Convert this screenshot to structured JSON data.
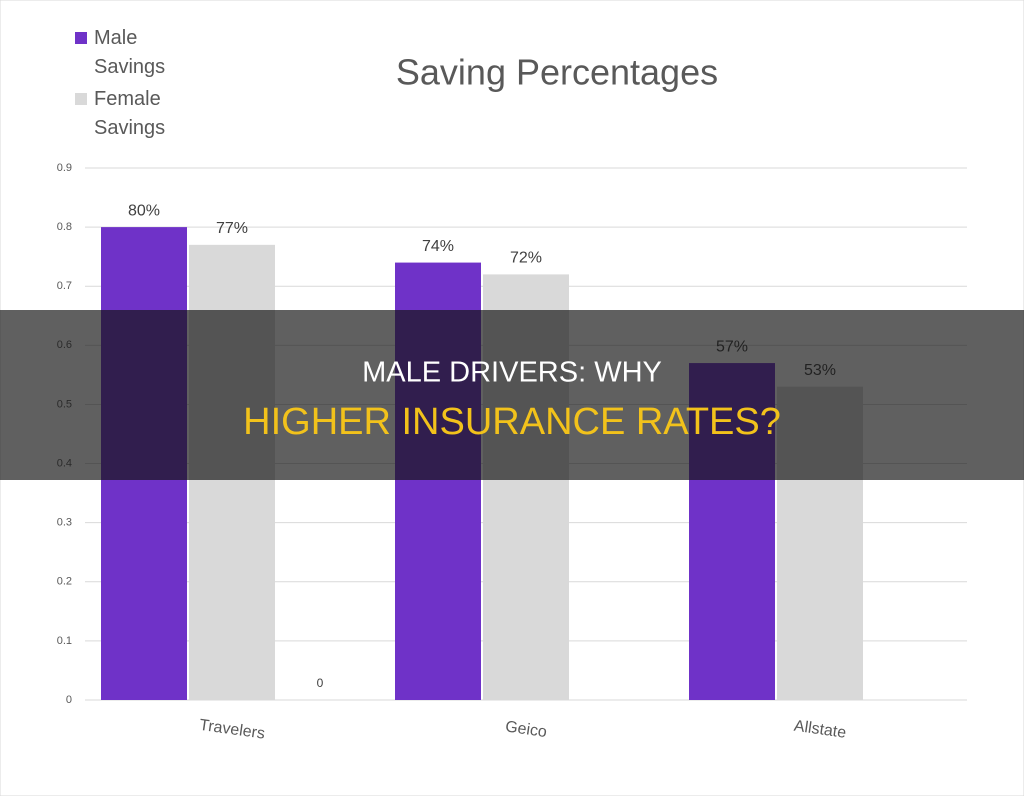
{
  "chart_data": {
    "type": "bar",
    "title": "Saving Percentages",
    "categories": [
      "Travelers",
      "Geico",
      "Allstate"
    ],
    "series": [
      {
        "name": "Male Savings",
        "color": "#6f32c8",
        "values": [
          0.8,
          0.74,
          0.57
        ],
        "value_labels": [
          "80%",
          "74%",
          "57%"
        ]
      },
      {
        "name": "Female Savings",
        "color": "#d9d9d9",
        "values": [
          0.77,
          0.72,
          0.53
        ],
        "value_labels": [
          "77%",
          "72%",
          "53%"
        ]
      },
      {
        "color": "#a5a5a5",
        "values": [
          0,
          null,
          null
        ]
      }
    ],
    "ylim": [
      0,
      0.9
    ],
    "yticks": [
      0,
      0.1,
      0.2,
      0.3,
      0.4,
      0.5,
      0.6,
      0.7,
      0.8,
      0.9
    ],
    "grid": true,
    "legend": "upper left"
  },
  "banner": {
    "line1": "MALE DRIVERS: WHY",
    "line2": "HIGHER INSURANCE RATES?"
  }
}
